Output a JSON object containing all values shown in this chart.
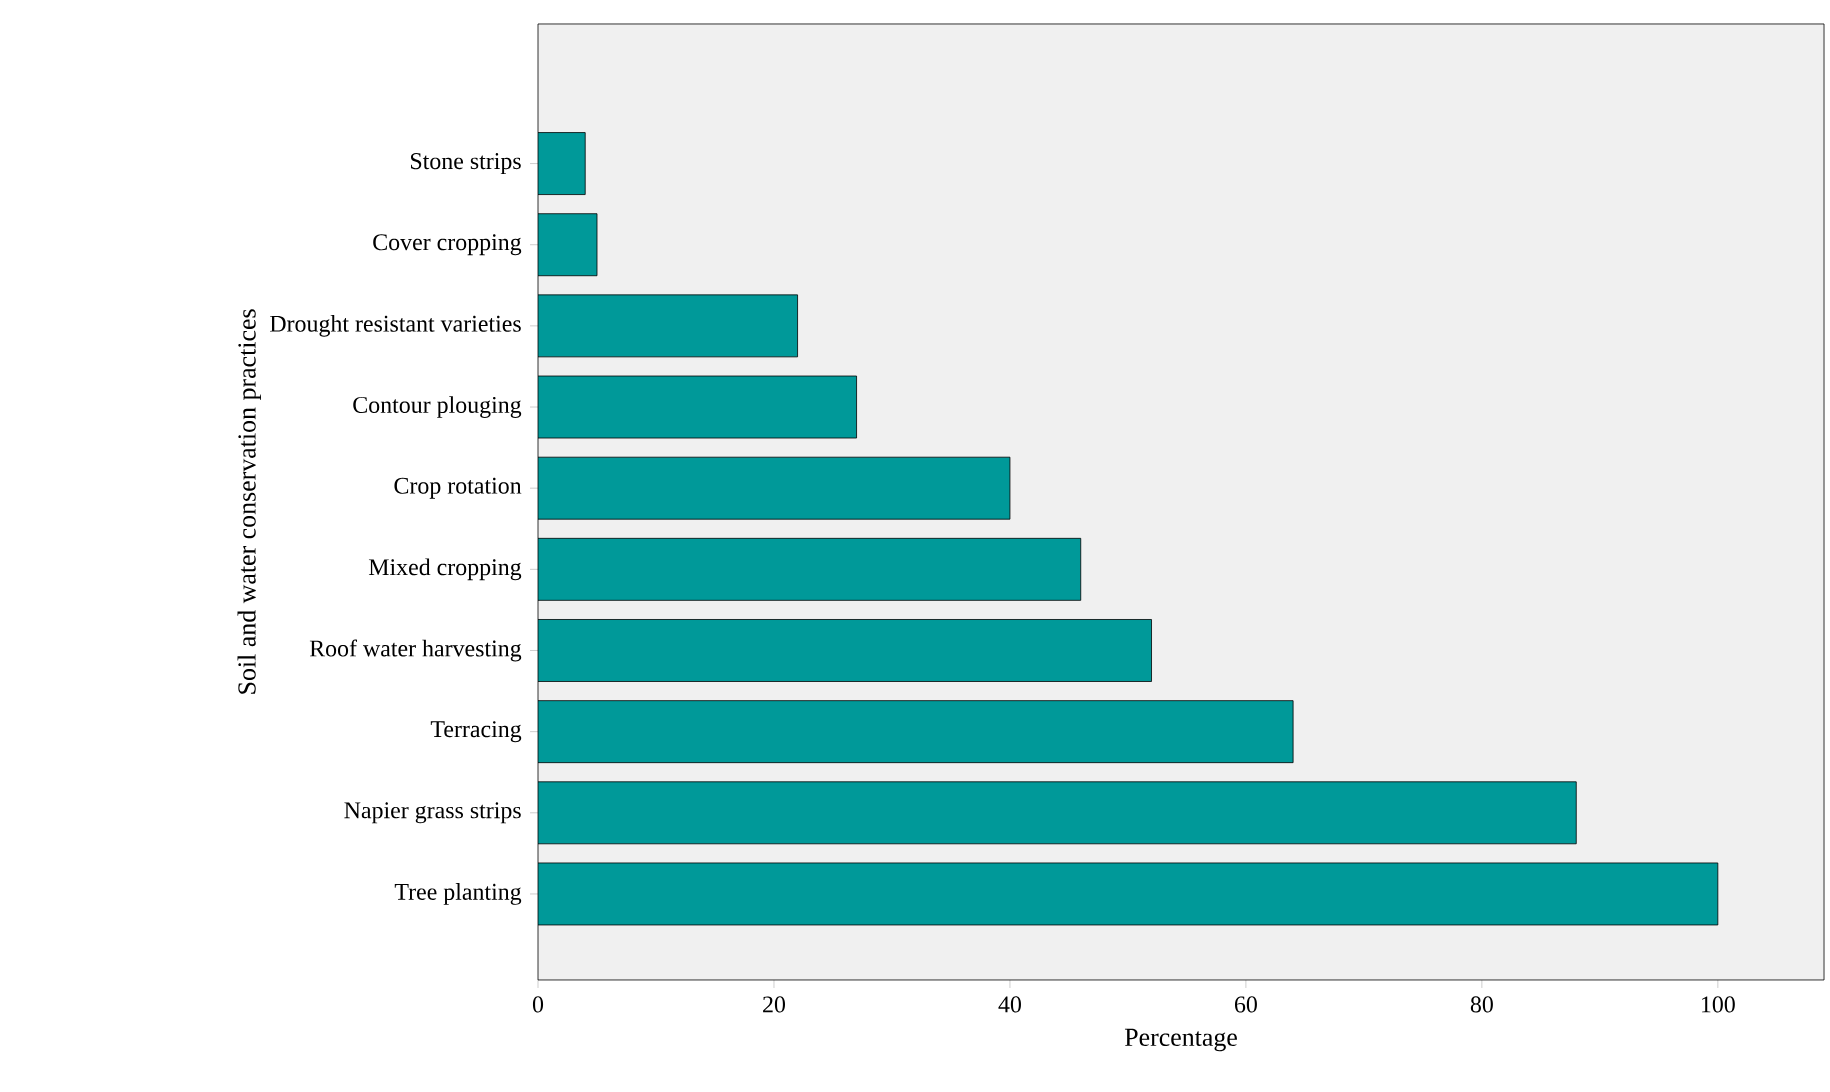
{
  "chart_data": {
    "type": "bar",
    "orientation": "horizontal",
    "xlabel": "Percentage",
    "ylabel": "Soil and water conservation practices",
    "categories": [
      "Stone strips",
      "Cover cropping",
      "Drought resistant varieties",
      "Contour plouging",
      "Crop rotation",
      "Mixed cropping",
      "Roof water harvesting",
      "Terracing",
      "Napier grass strips",
      "Tree planting"
    ],
    "values": [
      4,
      5,
      22,
      27,
      40,
      46,
      52,
      64,
      88,
      100
    ],
    "color": "#009999",
    "xlim": [
      0,
      109
    ],
    "xticks": [
      0,
      20,
      40,
      60,
      80,
      100
    ],
    "grid": false
  }
}
